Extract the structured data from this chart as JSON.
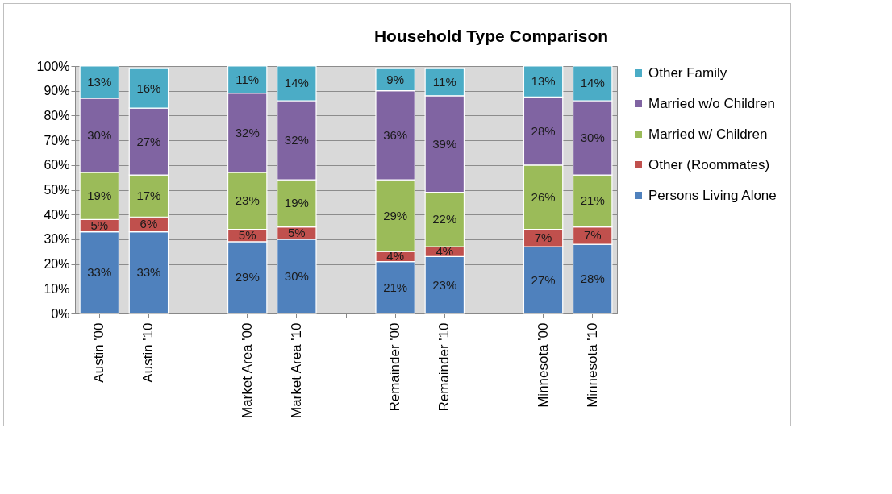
{
  "chart_data": {
    "type": "bar",
    "title": "Household Type Comparison",
    "stacked": true,
    "categories": [
      "Austin '00",
      "Austin '10",
      null,
      "Market Area '00",
      "Market Area '10",
      null,
      "Remainder '00",
      "Remainder '10",
      null,
      "Minnesota '00",
      "Minnesota '10"
    ],
    "series": [
      {
        "name": "Persons Living Alone",
        "color": "#4f81bd",
        "values": [
          33,
          33,
          null,
          29,
          30,
          null,
          21,
          23,
          null,
          27,
          28
        ],
        "value_labels": [
          "33%",
          "33%",
          null,
          "29%",
          "30%",
          null,
          "21%",
          "23%",
          null,
          "27%",
          "28%"
        ]
      },
      {
        "name": "Other (Roommates)",
        "color": "#c0504d",
        "values": [
          5,
          6,
          null,
          5,
          5,
          null,
          4,
          4,
          null,
          7,
          7
        ],
        "value_labels": [
          "5%",
          "6%",
          null,
          "5%",
          "5%",
          null,
          "4%",
          "4%",
          null,
          "7%",
          "7%"
        ]
      },
      {
        "name": "Married w/ Children",
        "color": "#9bbb59",
        "values": [
          19,
          17,
          null,
          23,
          19,
          null,
          29,
          22,
          null,
          26,
          21
        ],
        "value_labels": [
          "19%",
          "17%",
          null,
          "23%",
          "19%",
          null,
          "29%",
          "22%",
          null,
          "26%",
          "21%"
        ]
      },
      {
        "name": "Married w/o Children",
        "color": "#8064a2",
        "values": [
          30,
          27,
          null,
          32,
          32,
          null,
          36,
          39,
          null,
          27.5,
          30
        ],
        "value_labels": [
          "30%",
          "27%",
          null,
          "32%",
          "32%",
          null,
          "36%",
          "39%",
          null,
          "28%",
          "30%"
        ]
      },
      {
        "name": "Other Family",
        "color": "#4bacc6",
        "values": [
          13,
          16,
          null,
          11,
          14,
          null,
          9,
          11,
          null,
          12.5,
          14
        ],
        "value_labels": [
          "13%",
          "16%",
          null,
          "11%",
          "14%",
          null,
          "9%",
          "11%",
          null,
          "13%",
          "14%"
        ]
      }
    ],
    "ylim": [
      0,
      100
    ],
    "yticks": [
      {
        "value": 0,
        "label": "0%"
      },
      {
        "value": 10,
        "label": "10%"
      },
      {
        "value": 20,
        "label": "20%"
      },
      {
        "value": 30,
        "label": "30%"
      },
      {
        "value": 40,
        "label": "40%"
      },
      {
        "value": 50,
        "label": "50%"
      },
      {
        "value": 60,
        "label": "60%"
      },
      {
        "value": 70,
        "label": "70%"
      },
      {
        "value": 80,
        "label": "80%"
      },
      {
        "value": 90,
        "label": "90%"
      },
      {
        "value": 100,
        "label": "100%"
      }
    ],
    "grid": "y",
    "legend": "right"
  }
}
